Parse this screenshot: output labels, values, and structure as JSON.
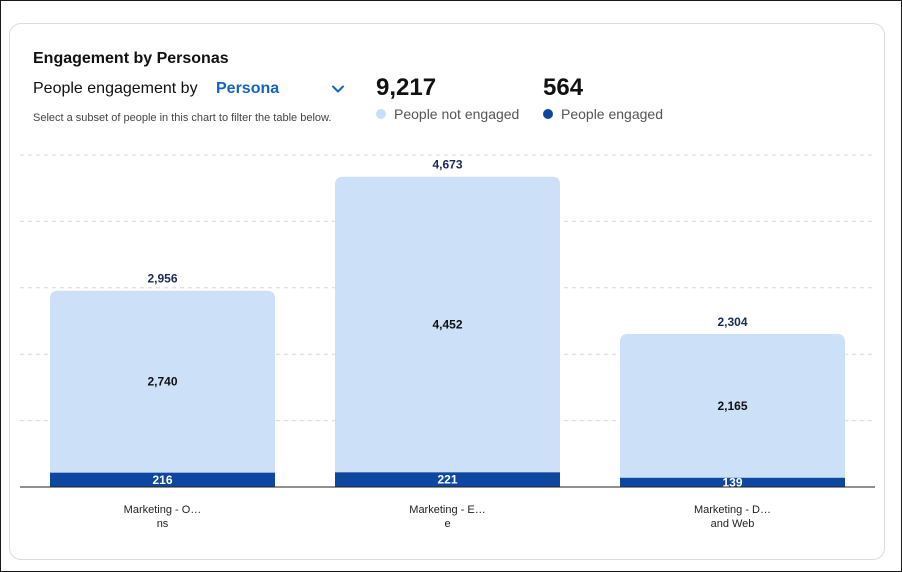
{
  "card": {
    "title": "Engagement by Personas",
    "selector_label": "People engagement by",
    "selector_value": "Persona",
    "hint": "Select a subset of people in this chart to filter the table below."
  },
  "stats": [
    {
      "value": "9,217",
      "label": "People not engaged",
      "color": "#c9dff7"
    },
    {
      "value": "564",
      "label": "People engaged",
      "color": "#0d47a1"
    }
  ],
  "chart_data": {
    "type": "bar",
    "stacked": true,
    "categories": [
      [
        "Marketing - O…",
        "ns"
      ],
      [
        "Marketing - E…",
        "e"
      ],
      [
        "Marketing - D…",
        "and Web"
      ]
    ],
    "series": [
      {
        "name": "People engaged",
        "values": [
          216,
          221,
          139
        ],
        "color": "#0d47a1"
      },
      {
        "name": "People not engaged",
        "values": [
          2740,
          4452,
          2165
        ],
        "color": "#cce0f8"
      }
    ],
    "totals": [
      2956,
      4673,
      2304
    ],
    "total_labels": [
      "2,956",
      "4,673",
      "2,304"
    ],
    "value_labels": {
      "engaged": [
        "216",
        "221",
        "139"
      ],
      "not_engaged": [
        "2,740",
        "4,452",
        "2,165"
      ]
    },
    "ylim": [
      0,
      5000
    ],
    "grid": true,
    "legend": "top"
  }
}
